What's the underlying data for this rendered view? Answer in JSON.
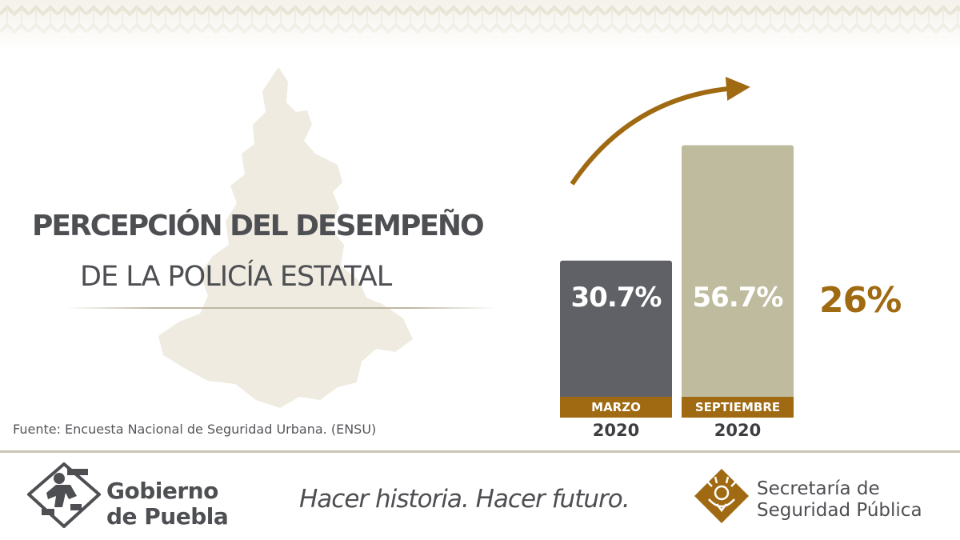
{
  "title": {
    "line1": "PERCEPCIÓN DEL DESEMPEÑO",
    "line2": "DE LA POLICÍA ESTATAL"
  },
  "source": "Fuente: Encuesta Nacional de Seguridad Urbana. (ENSU)",
  "chart_data": {
    "type": "bar",
    "categories": [
      "MARZO",
      "SEPTIEMBRE"
    ],
    "years": [
      "2020",
      "2020"
    ],
    "values": [
      30.7,
      56.7
    ],
    "value_labels": [
      "30.7%",
      "56.7%"
    ],
    "bar_colors": [
      "#5f6166",
      "#bfbb9e"
    ],
    "ylim": [
      0,
      75
    ],
    "increase_label": "26%",
    "accent_color": "#a06a12"
  },
  "footer": {
    "gov_line1": "Gobierno",
    "gov_line2": "de Puebla",
    "slogan": "Hacer historia. Hacer futuro.",
    "ssp_line1": "Secretaría de",
    "ssp_line2": "Seguridad Pública"
  },
  "icons": {
    "gov_logo": "gobierno-puebla-logo-icon",
    "ssp_logo": "ssp-emblem-icon",
    "state_map": "puebla-map-silhouette"
  }
}
